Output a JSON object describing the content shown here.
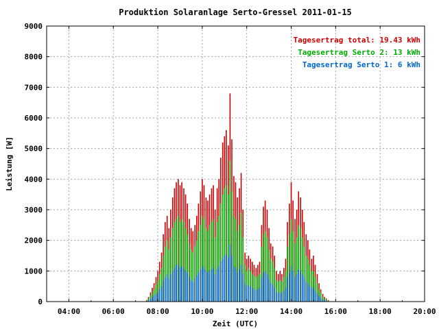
{
  "colors": {
    "total": "#cc0000",
    "serto2": "#00aa00",
    "serto1": "#0066cc"
  },
  "chart_data": {
    "type": "bar",
    "title": "Produktion Solaranlage Serto-Gressel 2011-01-15",
    "xlabel": "Zeit (UTC)",
    "ylabel": "Leistung [W]",
    "xlim": [
      3.0,
      20.0
    ],
    "ylim": [
      0,
      9000
    ],
    "xticks": [
      {
        "value": 4,
        "label": "04:00"
      },
      {
        "value": 6,
        "label": "06:00"
      },
      {
        "value": 8,
        "label": "08:00"
      },
      {
        "value": 10,
        "label": "10:00"
      },
      {
        "value": 12,
        "label": "12:00"
      },
      {
        "value": 14,
        "label": "14:00"
      },
      {
        "value": 16,
        "label": "16:00"
      },
      {
        "value": 18,
        "label": "18:00"
      },
      {
        "value": 20,
        "label": "20:00"
      }
    ],
    "yticks": [
      {
        "value": 0,
        "label": "0"
      },
      {
        "value": 1000,
        "label": "1000"
      },
      {
        "value": 2000,
        "label": "2000"
      },
      {
        "value": 3000,
        "label": "3000"
      },
      {
        "value": 4000,
        "label": "4000"
      },
      {
        "value": 5000,
        "label": "5000"
      },
      {
        "value": 6000,
        "label": "6000"
      },
      {
        "value": 7000,
        "label": "7000"
      },
      {
        "value": 8000,
        "label": "8000"
      },
      {
        "value": 9000,
        "label": "9000"
      }
    ],
    "grid": true,
    "legend_position": "top-right",
    "legend": [
      {
        "key": "total",
        "text": "Tagesertrag total: 19.43 kWh"
      },
      {
        "key": "serto2",
        "text": "Tagesertrag Serto 2: 13 kWh"
      },
      {
        "key": "serto1",
        "text": "Tagesertrag Serto 1: 6 kWh"
      }
    ],
    "x_times": [
      7.5,
      7.58,
      7.67,
      7.75,
      7.83,
      7.92,
      8.0,
      8.08,
      8.17,
      8.25,
      8.33,
      8.42,
      8.5,
      8.58,
      8.67,
      8.75,
      8.83,
      8.92,
      9.0,
      9.08,
      9.17,
      9.25,
      9.33,
      9.42,
      9.5,
      9.58,
      9.67,
      9.75,
      9.83,
      9.92,
      10.0,
      10.08,
      10.17,
      10.25,
      10.33,
      10.42,
      10.5,
      10.58,
      10.67,
      10.75,
      10.83,
      10.92,
      11.0,
      11.08,
      11.17,
      11.25,
      11.33,
      11.42,
      11.5,
      11.58,
      11.67,
      11.75,
      11.83,
      11.92,
      12.0,
      12.08,
      12.17,
      12.25,
      12.33,
      12.42,
      12.5,
      12.58,
      12.67,
      12.75,
      12.83,
      12.92,
      13.0,
      13.08,
      13.17,
      13.25,
      13.33,
      13.42,
      13.5,
      13.58,
      13.67,
      13.75,
      13.83,
      13.92,
      14.0,
      14.08,
      14.17,
      14.25,
      14.33,
      14.42,
      14.5,
      14.58,
      14.67,
      14.75,
      14.83,
      14.92,
      15.0,
      15.08,
      15.17,
      15.25,
      15.33,
      15.42,
      15.5,
      15.58,
      15.67,
      15.75,
      15.83,
      15.92,
      16.0
    ],
    "series": [
      {
        "key": "total",
        "name": "Tagesertrag total: 19.43 kWh",
        "values": [
          50,
          150,
          300,
          450,
          600,
          800,
          1000,
          1300,
          1600,
          2200,
          2600,
          2800,
          2400,
          3000,
          3400,
          3700,
          3900,
          4000,
          3800,
          3900,
          3700,
          3500,
          3200,
          2700,
          2400,
          2300,
          2500,
          2800,
          3200,
          3600,
          4000,
          3800,
          3400,
          3300,
          3500,
          3700,
          3800,
          3000,
          3700,
          4000,
          4700,
          5200,
          5400,
          5600,
          5100,
          6800,
          5300,
          4100,
          3900,
          3400,
          3700,
          4200,
          3000,
          1600,
          1400,
          1500,
          1400,
          1300,
          1200,
          1100,
          1200,
          1300,
          2500,
          3100,
          3300,
          3000,
          2400,
          1900,
          1800,
          1500,
          1000,
          900,
          1000,
          900,
          1100,
          1400,
          2600,
          3200,
          3900,
          3300,
          2700,
          3000,
          3600,
          3400,
          3000,
          2600,
          2200,
          2000,
          1700,
          1400,
          1500,
          1200,
          900,
          600,
          400,
          250,
          150,
          100,
          50,
          0,
          0,
          0,
          0
        ]
      },
      {
        "key": "serto2",
        "name": "Tagesertrag Serto 2: 13 kWh",
        "values": [
          30,
          100,
          200,
          300,
          400,
          550,
          700,
          900,
          1100,
          1500,
          1800,
          2000,
          1700,
          2100,
          2400,
          2600,
          2700,
          2800,
          2600,
          2700,
          2600,
          2400,
          2200,
          1900,
          1700,
          1600,
          1800,
          2000,
          2300,
          2500,
          2800,
          2700,
          2400,
          2300,
          2500,
          2600,
          2700,
          2100,
          2600,
          2800,
          3200,
          3500,
          3700,
          3800,
          3500,
          4600,
          3600,
          2800,
          2700,
          2300,
          2500,
          2900,
          2100,
          1200,
          1000,
          1100,
          1000,
          900,
          850,
          800,
          850,
          900,
          1800,
          2200,
          2300,
          2100,
          1700,
          1400,
          1300,
          1100,
          700,
          650,
          700,
          650,
          800,
          1000,
          1800,
          2200,
          2700,
          2300,
          1900,
          2100,
          2500,
          2400,
          2100,
          1800,
          1500,
          1400,
          1200,
          1000,
          1000,
          800,
          600,
          400,
          300,
          150,
          100,
          70,
          30,
          0,
          0,
          0,
          0
        ]
      },
      {
        "key": "serto1",
        "name": "Tagesertrag Serto 1: 6 kWh",
        "values": [
          10,
          50,
          100,
          150,
          200,
          250,
          300,
          400,
          500,
          700,
          800,
          900,
          750,
          900,
          1000,
          1100,
          1200,
          1200,
          1100,
          1150,
          1100,
          1000,
          950,
          800,
          700,
          650,
          750,
          850,
          950,
          1050,
          1150,
          1100,
          1000,
          950,
          1000,
          1050,
          1100,
          900,
          1050,
          1150,
          1300,
          1400,
          1500,
          1550,
          1450,
          1850,
          1500,
          1150,
          1100,
          950,
          1050,
          1200,
          900,
          600,
          500,
          550,
          500,
          450,
          400,
          380,
          400,
          450,
          800,
          950,
          1000,
          900,
          750,
          600,
          550,
          450,
          300,
          280,
          300,
          280,
          350,
          450,
          800,
          950,
          1150,
          1000,
          800,
          900,
          1050,
          1000,
          900,
          800,
          650,
          600,
          500,
          450,
          450,
          350,
          250,
          180,
          120,
          70,
          40,
          30,
          10,
          0,
          0,
          0,
          0
        ]
      }
    ]
  }
}
